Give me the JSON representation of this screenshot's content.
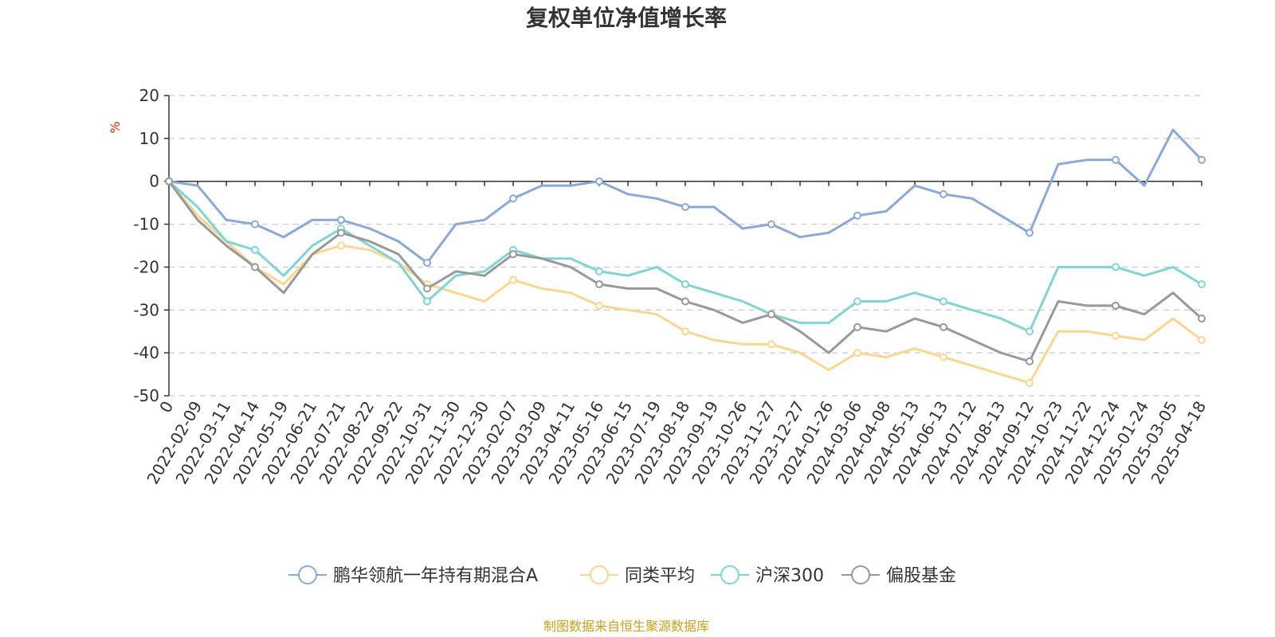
{
  "chart_data": {
    "type": "line",
    "title": "复权单位净值增长率",
    "ylabel": "%",
    "ylim": [
      -50,
      20
    ],
    "yticks": [
      "20",
      "10",
      "0",
      "-10",
      "-20",
      "-30",
      "-40",
      "-50"
    ],
    "x_ticks": [
      "0",
      "2022-02-09",
      "2022-03-11",
      "2022-04-14",
      "2022-05-19",
      "2022-06-21",
      "2022-07-21",
      "2022-08-22",
      "2022-09-22",
      "2022-10-31",
      "2022-11-30",
      "2022-12-30",
      "2023-02-07",
      "2023-03-09",
      "2023-04-11",
      "2023-05-16",
      "2023-06-15",
      "2023-07-19",
      "2023-08-18",
      "2023-09-19",
      "2023-10-26",
      "2023-11-27",
      "2023-12-27",
      "2024-01-26",
      "2024-03-06",
      "2024-04-08",
      "2024-05-13",
      "2024-06-13",
      "2024-07-12",
      "2024-08-13",
      "2024-09-12",
      "2024-10-23",
      "2024-11-22",
      "2024-12-24",
      "2025-01-24",
      "2025-03-05",
      "2025-04-18"
    ],
    "grid": true,
    "legend_position": "bottom",
    "x": [
      0,
      1,
      2,
      3,
      4,
      5,
      6,
      7,
      8,
      9,
      10,
      11,
      12,
      13,
      14,
      15,
      16,
      17,
      18,
      19,
      20,
      21,
      22,
      23,
      24,
      25,
      26,
      27,
      28,
      29,
      30,
      31,
      32,
      33,
      34,
      35,
      36
    ],
    "series": [
      {
        "name": "鹏华领航一年持有期混合A",
        "color": "#8aa9d8",
        "values": [
          0,
          -1,
          -9,
          -10,
          -13,
          -9,
          -9,
          -11,
          -14,
          -19,
          -10,
          -9,
          -4,
          -1,
          -1,
          0,
          -3,
          -4,
          -6,
          -6,
          -11,
          -10,
          -13,
          -12,
          -8,
          -7,
          -1,
          -3,
          -4,
          -8,
          -12,
          4,
          5,
          5,
          -1,
          12,
          5
        ]
      },
      {
        "name": "同类平均",
        "color": "#fcd590",
        "values": [
          0,
          -8,
          -14,
          -20,
          -24,
          -17,
          -15,
          -16,
          -19,
          -24,
          -26,
          -28,
          -23,
          -25,
          -26,
          -29,
          -30,
          -31,
          -35,
          -37,
          -38,
          -38,
          -40,
          -44,
          -40,
          -41,
          -39,
          -41,
          -43,
          -45,
          -47,
          -35,
          -35,
          -36,
          -37,
          -32,
          -37
        ]
      },
      {
        "name": "沪深300",
        "color": "#80d4d2",
        "values": [
          0,
          -6,
          -14,
          -16,
          -22,
          -15,
          -11,
          -15,
          -19,
          -28,
          -22,
          -21,
          -16,
          -18,
          -18,
          -21,
          -22,
          -20,
          -24,
          -26,
          -28,
          -31,
          -33,
          -33,
          -28,
          -28,
          -26,
          -28,
          -30,
          -32,
          -35,
          -20,
          -20,
          -20,
          -22,
          -20,
          -24
        ]
      },
      {
        "name": "偏股基金",
        "color": "#999999",
        "values": [
          0,
          -9,
          -15,
          -20,
          -26,
          -17,
          -12,
          -14,
          -17,
          -25,
          -21,
          -22,
          -17,
          -18,
          -20,
          -24,
          -25,
          -25,
          -28,
          -30,
          -33,
          -31,
          -35,
          -40,
          -34,
          -35,
          -32,
          -34,
          -37,
          -40,
          -42,
          -28,
          -29,
          -29,
          -31,
          -26,
          -32
        ]
      }
    ],
    "source_note": "制图数据来自恒生聚源数据库"
  }
}
